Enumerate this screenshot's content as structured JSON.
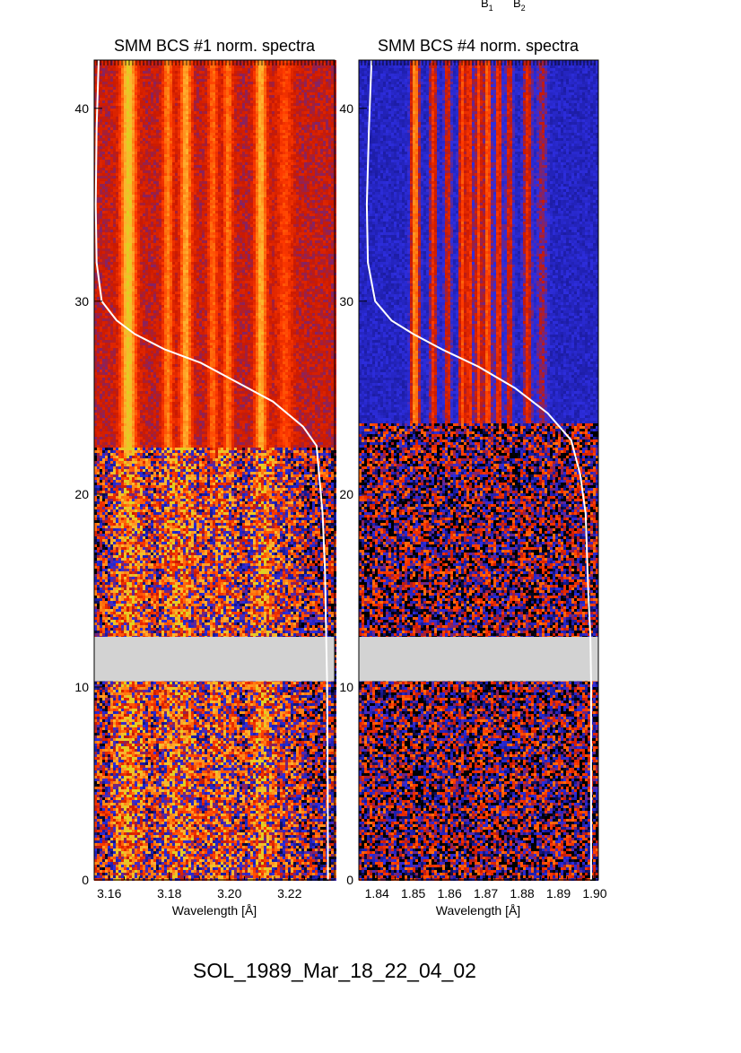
{
  "header_labels": [
    "B",
    "B"
  ],
  "header_subscripts": [
    "1",
    "2"
  ],
  "footer_title": "SOL_1989_Mar_18_22_04_02",
  "colors": {
    "background": "#ffffff",
    "data_gap": "#d3d3d3",
    "light_curve": "#ffffff",
    "colormap": [
      "#000000",
      "#1a1a9c",
      "#2e2ee0",
      "#cc1a00",
      "#ff3a00",
      "#ff7a10",
      "#ffb030",
      "#e0d020"
    ]
  },
  "chart_data": [
    {
      "type": "heatmap",
      "title": "SMM BCS #1 norm. spectra",
      "xlabel": "Wavelength [Å]",
      "ylabel": "",
      "xlim": [
        3.155,
        3.235
      ],
      "ylim": [
        0,
        42.5
      ],
      "x_ticks": [
        3.16,
        3.18,
        3.2,
        3.22
      ],
      "x_tick_labels": [
        "3.16",
        "3.18",
        "3.20",
        "3.22"
      ],
      "y_ticks": [
        0,
        10,
        20,
        30,
        40
      ],
      "y_tick_labels": [
        "0",
        "10",
        "20",
        "30",
        "40"
      ],
      "data_gap_y": [
        10.3,
        12.6
      ],
      "noise_below_y": 22.5,
      "line_features": [
        {
          "x": 3.1664,
          "strength": 1.0,
          "width": 0.0024
        },
        {
          "x": 3.1795,
          "strength": 0.55,
          "width": 0.0016
        },
        {
          "x": 3.1855,
          "strength": 0.75,
          "width": 0.0018
        },
        {
          "x": 3.1945,
          "strength": 0.45,
          "width": 0.0015
        },
        {
          "x": 3.1995,
          "strength": 0.5,
          "width": 0.0015
        },
        {
          "x": 3.2105,
          "strength": 0.8,
          "width": 0.0018
        },
        {
          "x": 3.2185,
          "strength": 0.3,
          "width": 0.0025
        }
      ],
      "light_curve": {
        "x": [
          3.1565,
          3.1558,
          3.1555,
          3.1558,
          3.1575,
          3.1625,
          3.1685,
          3.1785,
          3.1905,
          3.2025,
          3.2145,
          3.2245,
          3.229,
          3.231,
          3.2318,
          3.2322,
          3.2325,
          3.2327,
          3.2328
        ],
        "y": [
          42.5,
          39.0,
          35.0,
          32.0,
          30.0,
          29.0,
          28.3,
          27.5,
          26.8,
          25.8,
          24.8,
          23.5,
          22.5,
          19.0,
          16.0,
          12.6,
          10.3,
          5.0,
          0.0
        ]
      }
    },
    {
      "type": "heatmap",
      "title": "SMM BCS #4 norm. spectra",
      "xlabel": "Wavelength [Å]",
      "ylabel": "",
      "xlim": [
        1.835,
        1.901
      ],
      "ylim": [
        0,
        42.5
      ],
      "x_ticks": [
        1.84,
        1.85,
        1.86,
        1.87,
        1.88,
        1.89,
        1.9
      ],
      "x_tick_labels": [
        "1.84",
        "1.85",
        "1.86",
        "1.87",
        "1.88",
        "1.89",
        "1.90"
      ],
      "y_ticks": [
        0,
        10,
        20,
        30,
        40
      ],
      "y_tick_labels": [
        "0",
        "10",
        "20",
        "30",
        "40"
      ],
      "data_gap_y": [
        10.3,
        12.6
      ],
      "noise_below_y": 23.8,
      "line_features": [
        {
          "x": 1.8505,
          "strength": 1.0,
          "width": 0.0011
        },
        {
          "x": 1.8555,
          "strength": 0.55,
          "width": 0.001
        },
        {
          "x": 1.8595,
          "strength": 0.45,
          "width": 0.001
        },
        {
          "x": 1.8635,
          "strength": 0.7,
          "width": 0.0009
        },
        {
          "x": 1.8655,
          "strength": 0.6,
          "width": 0.0009
        },
        {
          "x": 1.868,
          "strength": 0.65,
          "width": 0.0009
        },
        {
          "x": 1.8705,
          "strength": 0.8,
          "width": 0.001
        },
        {
          "x": 1.8735,
          "strength": 0.6,
          "width": 0.0009
        },
        {
          "x": 1.8765,
          "strength": 0.45,
          "width": 0.001
        },
        {
          "x": 1.8815,
          "strength": 0.5,
          "width": 0.0012
        },
        {
          "x": 1.8855,
          "strength": 0.3,
          "width": 0.0014
        }
      ],
      "light_curve": {
        "x": [
          1.8385,
          1.8378,
          1.8372,
          1.8375,
          1.8395,
          1.844,
          1.85,
          1.858,
          1.868,
          1.878,
          1.887,
          1.8935,
          1.896,
          1.8975,
          1.8982,
          1.8988,
          1.899,
          1.899
        ],
        "y": [
          42.5,
          39.0,
          35.0,
          32.0,
          30.0,
          29.0,
          28.3,
          27.5,
          26.6,
          25.5,
          24.2,
          22.8,
          21.0,
          19.0,
          15.0,
          12.6,
          10.3,
          0.0
        ]
      }
    }
  ]
}
